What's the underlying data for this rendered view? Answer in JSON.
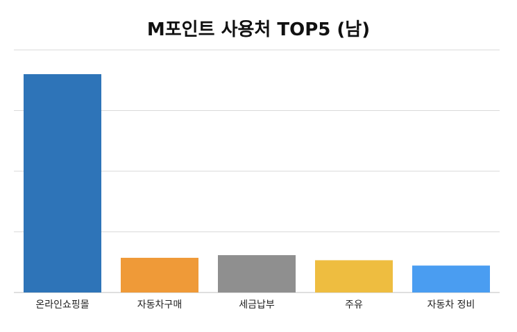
{
  "chart_data": {
    "type": "bar",
    "title": "M포인트 사용처 TOP5 (남)",
    "xlabel": "",
    "ylabel": "",
    "categories": [
      "온라인쇼핑몰",
      "자동차구매",
      "세금납부",
      "주유",
      "자동차 정비"
    ],
    "values": [
      90,
      14.3,
      15.4,
      13.3,
      11.1
    ],
    "colors": [
      "#2e74b8",
      "#ef9a38",
      "#8f8f8f",
      "#eebd40",
      "#4a9df1"
    ],
    "ylim": [
      0,
      100
    ],
    "gridlines": 4,
    "grid": true,
    "legend": "none"
  }
}
